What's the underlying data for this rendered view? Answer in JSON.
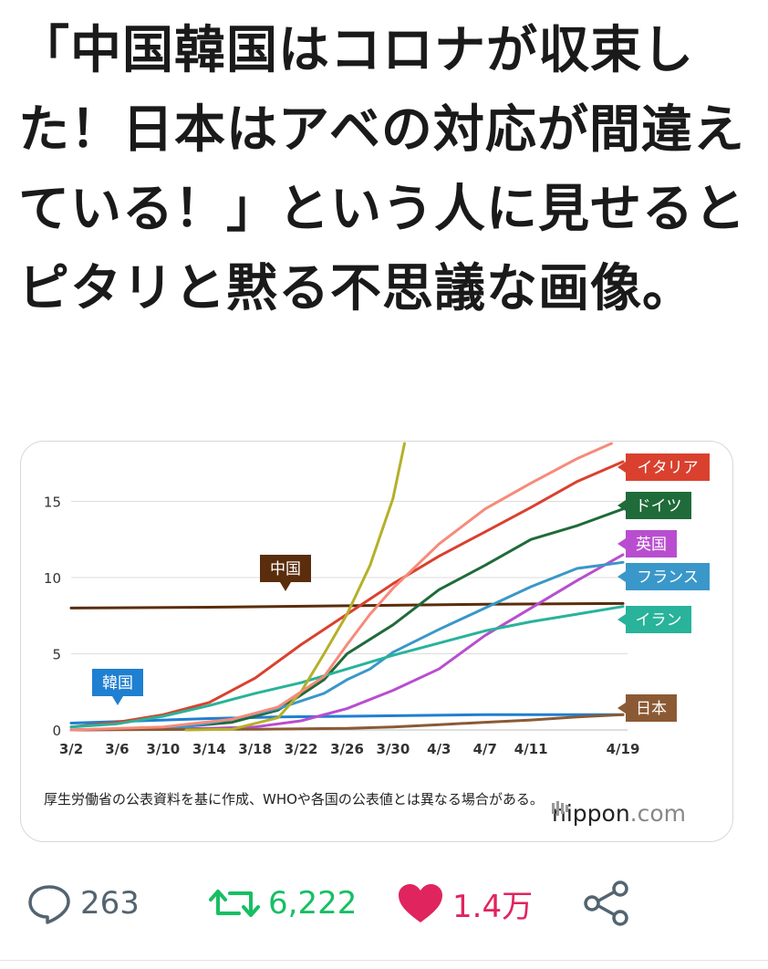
{
  "tweet": {
    "text": "「中国韓国はコロナが収束した！日本はアベの対応が間違えている！」という人に見せるとピタリと黙る不思議な画像。"
  },
  "card": {
    "source_note": "厚生労働省の公表資料を基に作成、WHOや各国の公表値とは異なる場合がある。",
    "brand": {
      "name": "nippon",
      "suffix": ".com"
    }
  },
  "chart_data": {
    "type": "line",
    "x_labels": [
      "3/2",
      "3/6",
      "3/10",
      "3/14",
      "3/18",
      "3/22",
      "3/26",
      "3/30",
      "4/3",
      "4/7",
      "4/11",
      "4/19"
    ],
    "x_days": [
      0,
      4,
      8,
      12,
      16,
      20,
      24,
      28,
      32,
      36,
      40,
      48
    ],
    "y_ticks": [
      0,
      5,
      10,
      15
    ],
    "ylim": [
      0,
      18.8
    ],
    "xlim": [
      0,
      48
    ],
    "grid": "horizontal",
    "series": [
      {
        "name": "中国",
        "color": "#5a2d0c",
        "points": [
          [
            0,
            8.0
          ],
          [
            12,
            8.05
          ],
          [
            24,
            8.15
          ],
          [
            36,
            8.25
          ],
          [
            48,
            8.3
          ]
        ]
      },
      {
        "name": "韓国",
        "color": "#1f7fd1",
        "points": [
          [
            0,
            0.45
          ],
          [
            6,
            0.6
          ],
          [
            12,
            0.75
          ],
          [
            18,
            0.85
          ],
          [
            24,
            0.9
          ],
          [
            30,
            0.95
          ],
          [
            36,
            1.0
          ],
          [
            42,
            1.0
          ],
          [
            48,
            1.0
          ]
        ]
      },
      {
        "name": "イタリア",
        "color": "#d9412e",
        "points": [
          [
            0,
            0.2
          ],
          [
            4,
            0.5
          ],
          [
            8,
            1.0
          ],
          [
            12,
            1.8
          ],
          [
            16,
            3.4
          ],
          [
            20,
            5.6
          ],
          [
            24,
            7.6
          ],
          [
            28,
            9.6
          ],
          [
            32,
            11.4
          ],
          [
            36,
            13.0
          ],
          [
            40,
            14.6
          ],
          [
            44,
            16.3
          ],
          [
            48,
            17.6
          ]
        ]
      },
      {
        "name": "ドイツ",
        "color": "#1f6b3a",
        "points": [
          [
            0,
            0.0
          ],
          [
            8,
            0.1
          ],
          [
            14,
            0.5
          ],
          [
            18,
            1.3
          ],
          [
            20,
            2.3
          ],
          [
            22,
            3.3
          ],
          [
            24,
            5.0
          ],
          [
            28,
            6.9
          ],
          [
            32,
            9.2
          ],
          [
            36,
            10.8
          ],
          [
            40,
            12.5
          ],
          [
            44,
            13.4
          ],
          [
            48,
            14.5
          ]
        ]
      },
      {
        "name": "英国",
        "color": "#b84ecf",
        "points": [
          [
            0,
            0.0
          ],
          [
            12,
            0.1
          ],
          [
            16,
            0.2
          ],
          [
            20,
            0.6
          ],
          [
            24,
            1.4
          ],
          [
            28,
            2.6
          ],
          [
            32,
            4.0
          ],
          [
            36,
            6.2
          ],
          [
            40,
            8.0
          ],
          [
            44,
            9.8
          ],
          [
            48,
            11.5
          ]
        ]
      },
      {
        "name": "フランス",
        "color": "#3a97c9",
        "points": [
          [
            0,
            0.0
          ],
          [
            10,
            0.2
          ],
          [
            14,
            0.7
          ],
          [
            18,
            1.4
          ],
          [
            22,
            2.4
          ],
          [
            24,
            3.3
          ],
          [
            26,
            4.0
          ],
          [
            28,
            5.1
          ],
          [
            32,
            6.6
          ],
          [
            36,
            8.0
          ],
          [
            40,
            9.4
          ],
          [
            44,
            10.6
          ],
          [
            48,
            11.0
          ]
        ]
      },
      {
        "name": "イラン",
        "color": "#28b39a",
        "points": [
          [
            0,
            0.2
          ],
          [
            4,
            0.4
          ],
          [
            8,
            0.9
          ],
          [
            12,
            1.6
          ],
          [
            16,
            2.4
          ],
          [
            20,
            3.1
          ],
          [
            24,
            4.0
          ],
          [
            28,
            4.9
          ],
          [
            32,
            5.7
          ],
          [
            36,
            6.5
          ],
          [
            40,
            7.1
          ],
          [
            44,
            7.6
          ],
          [
            48,
            8.1
          ]
        ]
      },
      {
        "name": "日本",
        "color": "#8b5a35",
        "points": [
          [
            0,
            0.0
          ],
          [
            16,
            0.05
          ],
          [
            24,
            0.1
          ],
          [
            28,
            0.2
          ],
          [
            32,
            0.35
          ],
          [
            36,
            0.5
          ],
          [
            40,
            0.65
          ],
          [
            44,
            0.85
          ],
          [
            48,
            1.0
          ]
        ]
      },
      {
        "color": "#b5b02a",
        "points": [
          [
            10,
            0.0
          ],
          [
            14,
            0.05
          ],
          [
            18,
            0.8
          ],
          [
            20,
            2.5
          ],
          [
            22,
            5.0
          ],
          [
            24,
            7.6
          ],
          [
            26,
            10.8
          ],
          [
            28,
            15.2
          ],
          [
            29,
            18.8
          ]
        ]
      },
      {
        "color": "#f78a7a",
        "points": [
          [
            0,
            0.0
          ],
          [
            8,
            0.2
          ],
          [
            14,
            0.7
          ],
          [
            18,
            1.5
          ],
          [
            22,
            3.5
          ],
          [
            24,
            5.6
          ],
          [
            26,
            7.6
          ],
          [
            28,
            9.3
          ],
          [
            32,
            12.2
          ],
          [
            36,
            14.5
          ],
          [
            40,
            16.2
          ],
          [
            44,
            17.8
          ],
          [
            47,
            18.8
          ]
        ]
      }
    ],
    "labels": [
      {
        "text": "イタリア",
        "series": "イタリア",
        "color": "#d9412e"
      },
      {
        "text": "ドイツ",
        "series": "ドイツ",
        "color": "#1f6b3a"
      },
      {
        "text": "英国",
        "series": "英国",
        "color": "#b84ecf"
      },
      {
        "text": "フランス",
        "series": "フランス",
        "color": "#3a97c9"
      },
      {
        "text": "イラン",
        "series": "イラン",
        "color": "#28b39a"
      },
      {
        "text": "日本",
        "series": "日本",
        "color": "#8b5a35"
      },
      {
        "text": "中国",
        "series": "中国",
        "color": "#5a2d0c"
      },
      {
        "text": "韓国",
        "series": "韓国",
        "color": "#1f7fd1"
      }
    ]
  },
  "actions": {
    "reply_count": "263",
    "retweet_count": "6,222",
    "like_count": "1.4万",
    "icons": {
      "reply": "speech-bubble-icon",
      "retweet": "retweet-arrows-icon",
      "like": "heart-icon",
      "share": "share-nodes-icon"
    },
    "colors": {
      "reply": "#536471",
      "retweet": "#17bf63",
      "like": "#e0245e",
      "share": "#536471"
    }
  }
}
